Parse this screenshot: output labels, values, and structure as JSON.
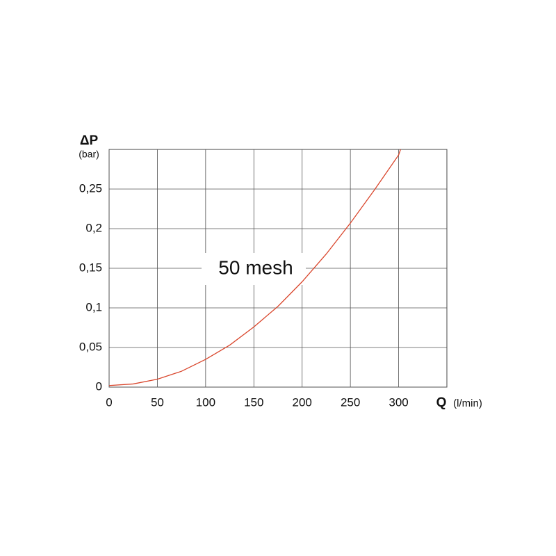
{
  "chart_data": {
    "type": "line",
    "y_label": "ΔP",
    "y_unit": "(bar)",
    "x_label": "Q",
    "x_unit": "(l/min)",
    "annotation": "50 mesh",
    "series": [
      {
        "name": "50 mesh",
        "color": "#d9452b",
        "x": [
          0,
          25,
          50,
          75,
          100,
          125,
          150,
          175,
          200,
          225,
          250,
          275,
          300,
          302
        ],
        "values": [
          0.002,
          0.004,
          0.01,
          0.02,
          0.035,
          0.053,
          0.076,
          0.102,
          0.133,
          0.168,
          0.207,
          0.249,
          0.293,
          0.3
        ]
      }
    ],
    "xlim": [
      0,
      350
    ],
    "xticks": [
      0,
      50,
      100,
      150,
      200,
      250,
      300
    ],
    "ylim": [
      0,
      0.3
    ],
    "yticks": [
      0,
      {
        "value": 0.05,
        "label": "0,05"
      },
      {
        "value": 0.1,
        "label": "0,1"
      },
      {
        "value": 0.15,
        "label": "0,15"
      },
      {
        "value": 0.2,
        "label": "0,2"
      },
      {
        "value": 0.25,
        "label": "0,25"
      }
    ],
    "grid": true
  }
}
